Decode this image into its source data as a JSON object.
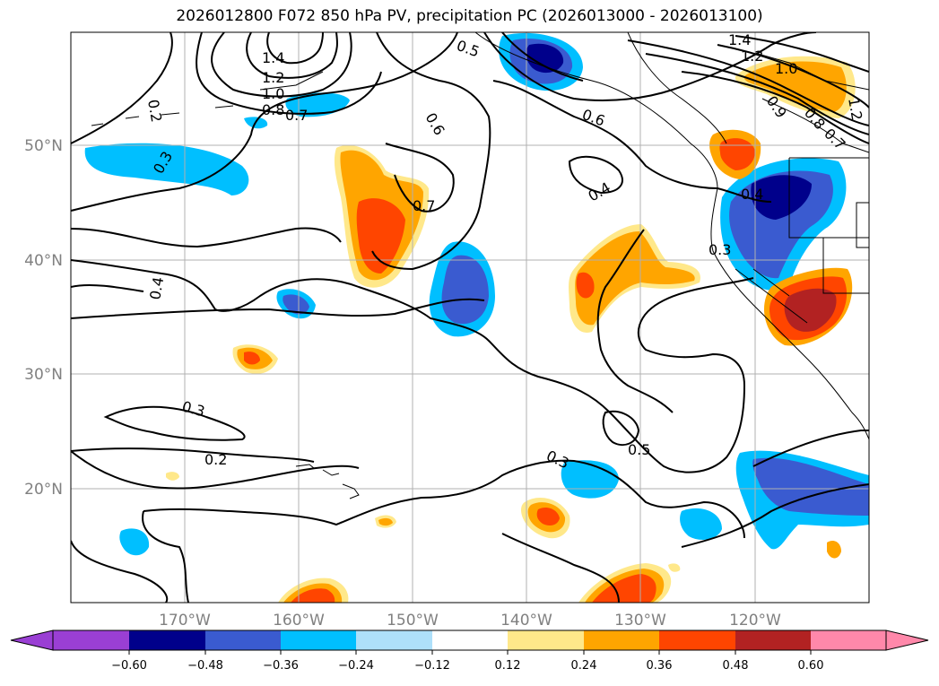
{
  "title": "2026012800 F072 850 hPa PV, precipitation PC (2026013000 - 2026013100)",
  "lon_labels": [
    "170°W",
    "160°W",
    "150°W",
    "140°W",
    "130°W",
    "120°W"
  ],
  "lat_labels": [
    "50°N",
    "40°N",
    "30°N",
    "20°N"
  ],
  "colorbar": {
    "ticks": [
      "−0.60",
      "−0.48",
      "−0.36",
      "−0.24",
      "−0.12",
      "0.12",
      "0.24",
      "0.36",
      "0.48",
      "0.60"
    ],
    "colors": [
      "#9a3fd4",
      "#00008b",
      "#3a5bd0",
      "#00bfff",
      "#aee0fa",
      "#ffffff",
      "#ffe88a",
      "#ffa500",
      "#ff4500",
      "#b22222",
      "#ff88aa"
    ]
  },
  "contour_labels": [
    "1.4",
    "1.2",
    "1.0",
    "0.8",
    "0.7",
    "0.2",
    "0.3",
    "0.4",
    "0.5",
    "0.6",
    "0.6",
    "0.7",
    "0.4",
    "0.3",
    "0.3",
    "0.4",
    "0.2",
    "0.3",
    "0.5",
    "1.4",
    "1.2",
    "1.0",
    "0.9",
    "0.8",
    "0.7",
    "1.2"
  ]
}
